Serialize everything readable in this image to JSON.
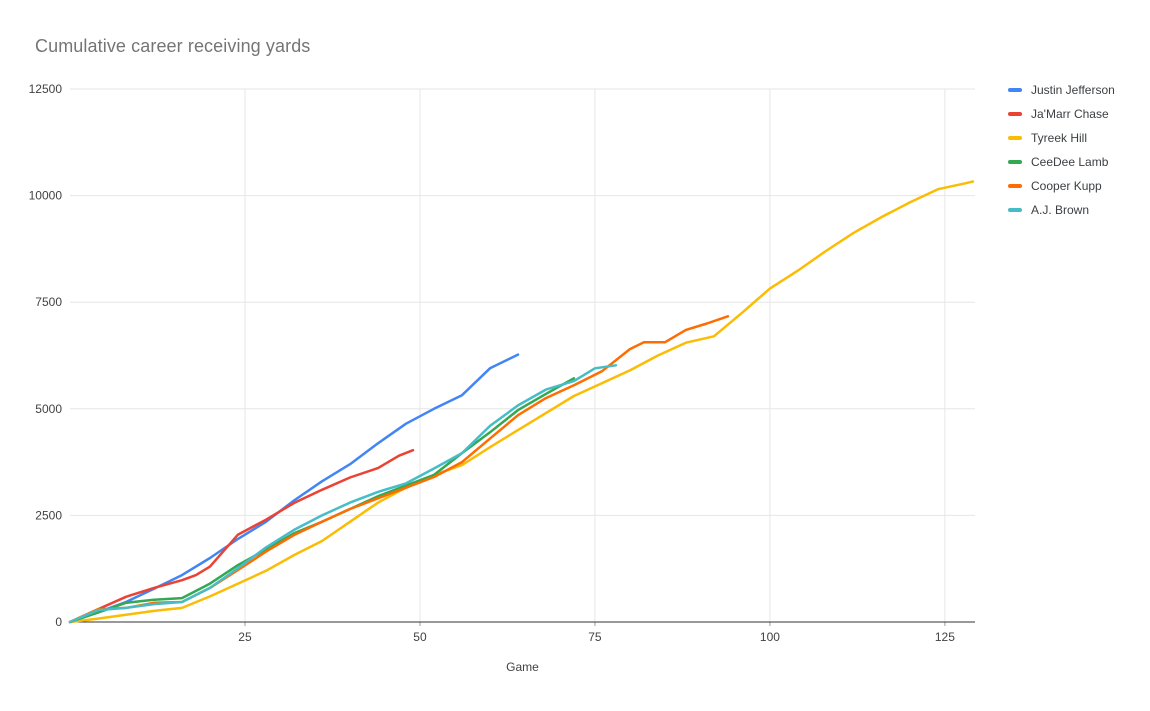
{
  "chart_data": {
    "type": "line",
    "title": "Cumulative career receiving yards",
    "xlabel": "Game",
    "ylabel": "",
    "xlim": [
      0,
      129.3
    ],
    "ylim": [
      0,
      12500
    ],
    "x_ticks": [
      25,
      50,
      75,
      100,
      125
    ],
    "y_ticks": [
      0,
      2500,
      5000,
      7500,
      10000,
      12500
    ],
    "grid": true,
    "legend_position": "right",
    "series": [
      {
        "name": "Justin Jefferson",
        "color": "#4285F4",
        "x": [
          0,
          4,
          8,
          12,
          16,
          20,
          24,
          28,
          32,
          36,
          40,
          44,
          48,
          52,
          56,
          60,
          64
        ],
        "values": [
          0,
          230,
          470,
          780,
          1100,
          1500,
          1950,
          2350,
          2850,
          3300,
          3700,
          4190,
          4650,
          5000,
          5320,
          5950,
          6270
        ]
      },
      {
        "name": "Ja'Marr Chase",
        "color": "#EA4335",
        "x": [
          0,
          4,
          8,
          12,
          16,
          18,
          20,
          24,
          28,
          32,
          36,
          40,
          44,
          47,
          49
        ],
        "values": [
          0,
          300,
          590,
          800,
          980,
          1100,
          1300,
          2050,
          2400,
          2790,
          3100,
          3390,
          3610,
          3900,
          4030
        ]
      },
      {
        "name": "Tyreek Hill",
        "color": "#FBBC04",
        "x": [
          0,
          4,
          8,
          12,
          16,
          20,
          24,
          28,
          32,
          36,
          40,
          44,
          48,
          52,
          56,
          60,
          64,
          68,
          72,
          76,
          80,
          84,
          88,
          92,
          96,
          100,
          104,
          108,
          112,
          116,
          120,
          124,
          128,
          129
        ],
        "values": [
          0,
          80,
          170,
          260,
          330,
          600,
          900,
          1200,
          1570,
          1900,
          2350,
          2800,
          3150,
          3450,
          3680,
          4100,
          4500,
          4900,
          5300,
          5600,
          5900,
          6250,
          6550,
          6700,
          7250,
          7820,
          8240,
          8700,
          9130,
          9500,
          9840,
          10150,
          10290,
          10330
        ]
      },
      {
        "name": "CeeDee Lamb",
        "color": "#34A853",
        "x": [
          0,
          4,
          8,
          12,
          16,
          20,
          24,
          28,
          32,
          36,
          40,
          44,
          48,
          52,
          56,
          60,
          64,
          68,
          72
        ],
        "values": [
          0,
          220,
          450,
          520,
          560,
          900,
          1335,
          1700,
          2080,
          2350,
          2650,
          2950,
          3200,
          3450,
          3960,
          4450,
          4970,
          5350,
          5715
        ]
      },
      {
        "name": "Cooper Kupp",
        "color": "#FF6D01",
        "x": [
          0,
          4,
          8,
          12,
          16,
          20,
          24,
          28,
          32,
          36,
          40,
          44,
          48,
          52,
          56,
          60,
          64,
          68,
          72,
          76,
          80,
          82,
          85,
          88,
          91,
          94
        ],
        "values": [
          0,
          300,
          330,
          450,
          470,
          800,
          1220,
          1650,
          2040,
          2350,
          2650,
          2900,
          3150,
          3400,
          3750,
          4300,
          4850,
          5250,
          5550,
          5880,
          6400,
          6560,
          6560,
          6850,
          7000,
          7170
        ]
      },
      {
        "name": "A.J. Brown",
        "color": "#46BDC6",
        "x": [
          0,
          4,
          8,
          12,
          16,
          20,
          24,
          28,
          32,
          36,
          40,
          44,
          48,
          52,
          56,
          60,
          64,
          68,
          72,
          75,
          78
        ],
        "values": [
          0,
          280,
          330,
          420,
          470,
          800,
          1265,
          1750,
          2160,
          2500,
          2800,
          3050,
          3250,
          3600,
          3960,
          4600,
          5080,
          5450,
          5650,
          5950,
          6020
        ]
      }
    ]
  },
  "colors": {
    "background": "#FFFFFF",
    "title_text": "#757575",
    "axis_text": "#424242",
    "legend_text": "#3C4043",
    "gridline": "#E6E6E6",
    "axis_line": "#333333",
    "tick_mark": "#9E9E9E"
  }
}
